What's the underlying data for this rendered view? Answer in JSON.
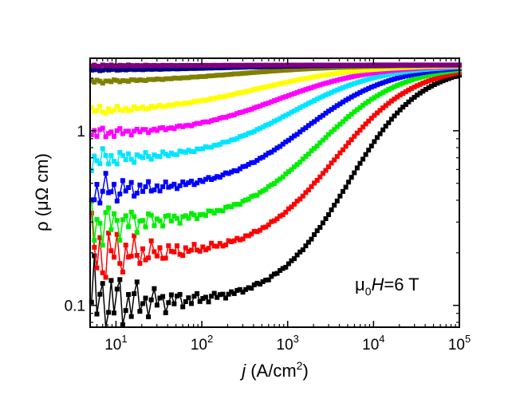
{
  "chart_data": {
    "type": "line",
    "title": "",
    "xlabel": {
      "italic": "j",
      "main": " (A/cm",
      "sup": "2",
      "tail": ")"
    },
    "ylabel": "ρ (μΩ cm)",
    "xscale": "log",
    "yscale": "log",
    "xlim": [
      5,
      100000
    ],
    "ylim": [
      0.075,
      2.6
    ],
    "x_ticks": [
      {
        "value": 10,
        "base": "10",
        "exp": "1"
      },
      {
        "value": 100,
        "base": "10",
        "exp": "2"
      },
      {
        "value": 1000,
        "base": "10",
        "exp": "3"
      },
      {
        "value": 10000,
        "base": "10",
        "exp": "4"
      },
      {
        "value": 100000,
        "base": "10",
        "exp": "5"
      }
    ],
    "y_ticks": [
      {
        "value": 0.1,
        "label": "0.1"
      },
      {
        "value": 1,
        "label": "1"
      }
    ],
    "annotation": {
      "mu": "μ",
      "sub": "0",
      "italic": "H",
      "rest": "=6 T"
    },
    "grid": false,
    "legend": "none",
    "marker": "square",
    "x_points": [
      5.2,
      5.6,
      6.0,
      6.5,
      7.0,
      7.6,
      8.2,
      8.8,
      9.5,
      10.3,
      11.1,
      12.0,
      13.0,
      14.0,
      15.1,
      16.3,
      17.6,
      19.0,
      20.5,
      22.1,
      23.9,
      25.8,
      27.9,
      30.1,
      32.5,
      35.1,
      37.9,
      40.9,
      44.2,
      47.7,
      51.5,
      55.6,
      60.0,
      64.8,
      70.0,
      75.6,
      81.6,
      88.1,
      95.1,
      102.7,
      110.9,
      119.7,
      129.3,
      139.6,
      150.7,
      162.7,
      175.7,
      189.7,
      204.8,
      221.1,
      238.8,
      257.8,
      278.3,
      300.5,
      324.5,
      350.4,
      378.3,
      408.4,
      441.0,
      476.1,
      514.1,
      555.0,
      599.3,
      647.0,
      698.6,
      754.3,
      814.4,
      879.3,
      949.4,
      1025,
      1107,
      1195,
      1290,
      1393,
      1504,
      1624,
      1753,
      1893,
      2044,
      2207,
      2383,
      2573,
      2778,
      2999,
      3238,
      3496,
      3775,
      4076,
      4400,
      4751,
      5130,
      5538,
      5980,
      6456,
      6971,
      7526,
      8126,
      8774,
      9473,
      10228,
      11043,
      11923,
      12873,
      13899,
      15006,
      16202,
      17493,
      18887,
      20392,
      22017,
      23771,
      25665,
      27711,
      29919,
      32303,
      34877,
      37656,
      40657,
      43897,
      47394,
      51171,
      55248,
      59651,
      64404,
      69536,
      75077,
      81060,
      87519,
      94493,
      100000
    ],
    "series": [
      {
        "color": "#000000",
        "base": 0.104,
        "j_c": 5000,
        "width": 0.42,
        "osc": 0.5
      },
      {
        "color": "#ff0000",
        "base": 0.195,
        "j_c": 3500,
        "width": 0.46,
        "osc": 0.38
      },
      {
        "color": "#00ee00",
        "base": 0.295,
        "j_c": 2300,
        "width": 0.48,
        "osc": 0.28
      },
      {
        "color": "#0000ff",
        "base": 0.45,
        "j_c": 1600,
        "width": 0.5,
        "osc": 0.2
      },
      {
        "color": "#00e5ff",
        "base": 0.68,
        "j_c": 1100,
        "width": 0.52,
        "osc": 0.12
      },
      {
        "color": "#ff00ff",
        "base": 0.95,
        "j_c": 750,
        "width": 0.55,
        "osc": 0.07
      },
      {
        "color": "#ffff00",
        "base": 1.27,
        "j_c": 450,
        "width": 0.6,
        "osc": 0.05
      },
      {
        "color": "#808000",
        "base": 1.88,
        "j_c": 250,
        "width": 0.65,
        "osc": 0.02
      },
      {
        "color": "#000080",
        "base": 2.22,
        "j_c": 200,
        "width": 0.6,
        "osc": 0.01
      },
      {
        "color": "#800080",
        "base": 2.36,
        "j_c": 200,
        "width": 0.6,
        "osc": 0.01
      }
    ],
    "rho_n": 2.38
  }
}
